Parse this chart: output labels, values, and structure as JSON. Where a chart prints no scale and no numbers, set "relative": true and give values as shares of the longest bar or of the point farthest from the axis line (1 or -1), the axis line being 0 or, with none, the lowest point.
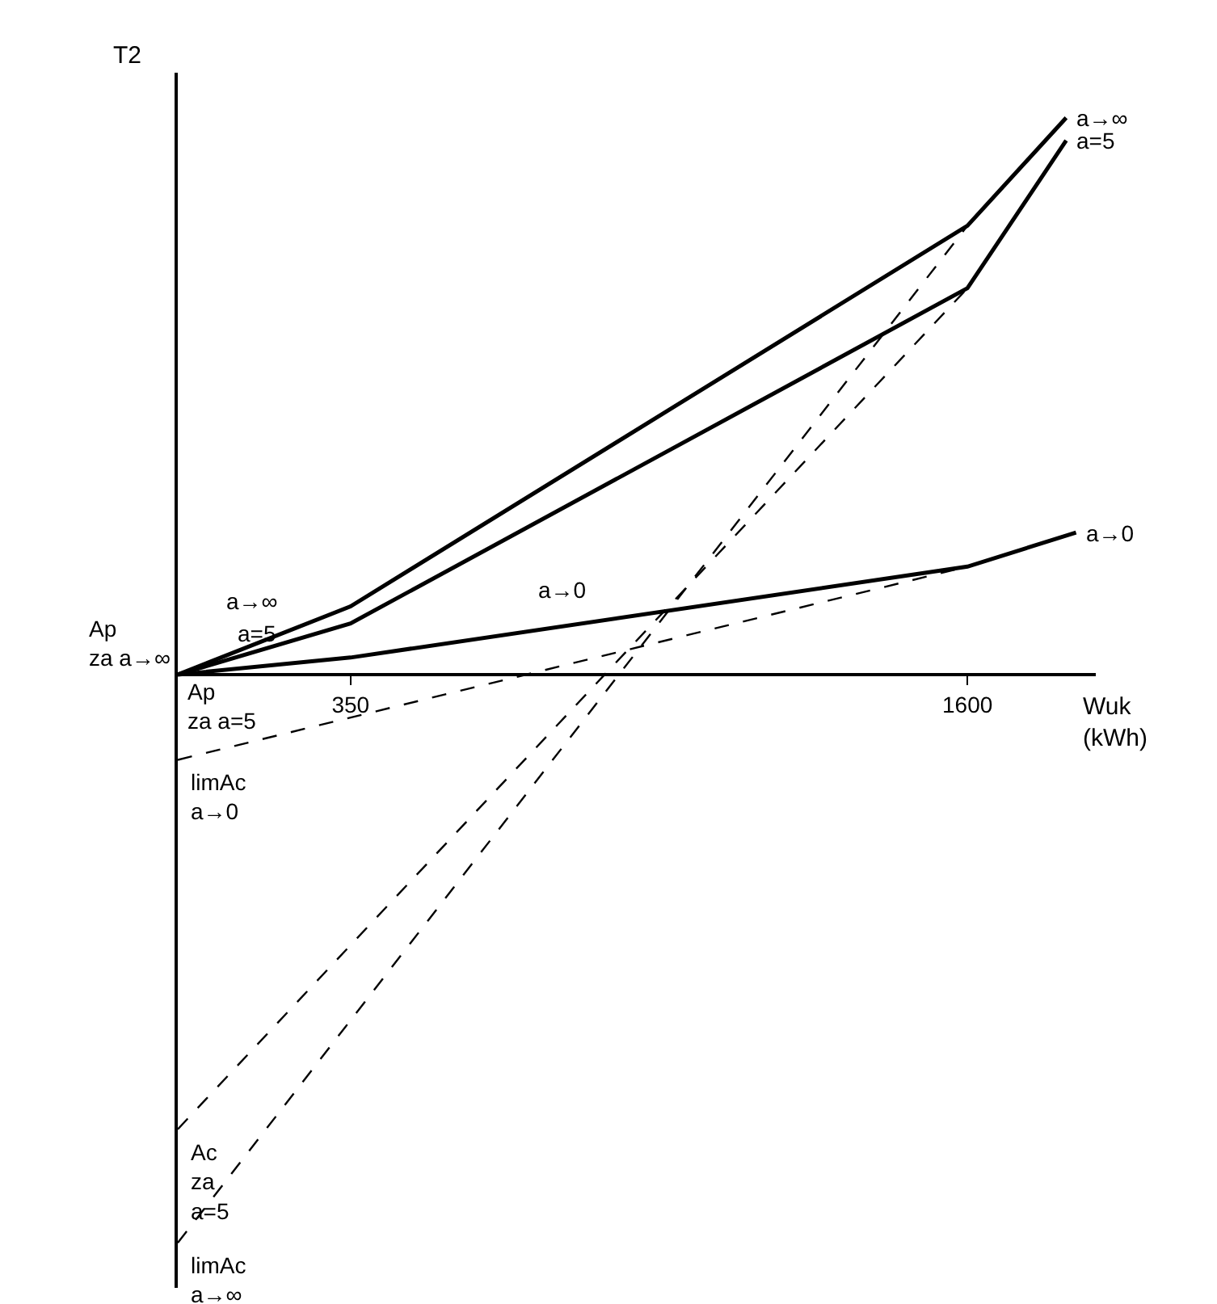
{
  "chart_data": {
    "type": "line",
    "relative": true,
    "xlabel": "Wuk\n(kWh)",
    "ylabel": "T2",
    "xlim": [
      0,
      1860
    ],
    "xticks": [
      350,
      1600
    ],
    "marker": "none",
    "series": [
      {
        "name": "a→∞",
        "color": "#000000",
        "line_style": "solid",
        "x": [
          0,
          350,
          1600,
          1800
        ],
        "values": [
          0,
          0.12,
          0.79,
          0.98
        ]
      },
      {
        "name": "a=5",
        "color": "#000000",
        "line_style": "solid",
        "x": [
          0,
          350,
          1600,
          1800
        ],
        "values": [
          0,
          0.09,
          0.68,
          0.94
        ]
      },
      {
        "name": "a→0",
        "color": "#000000",
        "line_style": "solid",
        "x": [
          0,
          350,
          1600,
          1820
        ],
        "values": [
          0,
          0.03,
          0.19,
          0.25
        ]
      },
      {
        "name": "limAc\na→0",
        "color": "#000000",
        "line_style": "dashed",
        "x": [
          0,
          1600
        ],
        "values": [
          -0.15,
          0.19
        ]
      },
      {
        "name": "Ac\nza\na=5",
        "color": "#000000",
        "line_style": "dashed",
        "x": [
          0,
          1600
        ],
        "values": [
          -0.8,
          0.68
        ]
      },
      {
        "name": "limAc\na→∞",
        "color": "#000000",
        "line_style": "dashed",
        "x": [
          0,
          1600
        ],
        "values": [
          -1,
          0.79
        ]
      }
    ],
    "annotations": [
      {
        "text": "Ap\nza a→∞",
        "x": 0,
        "y": 0
      },
      "Ap\nza a=5",
      "a→∞",
      "a=5",
      "a→0"
    ]
  }
}
